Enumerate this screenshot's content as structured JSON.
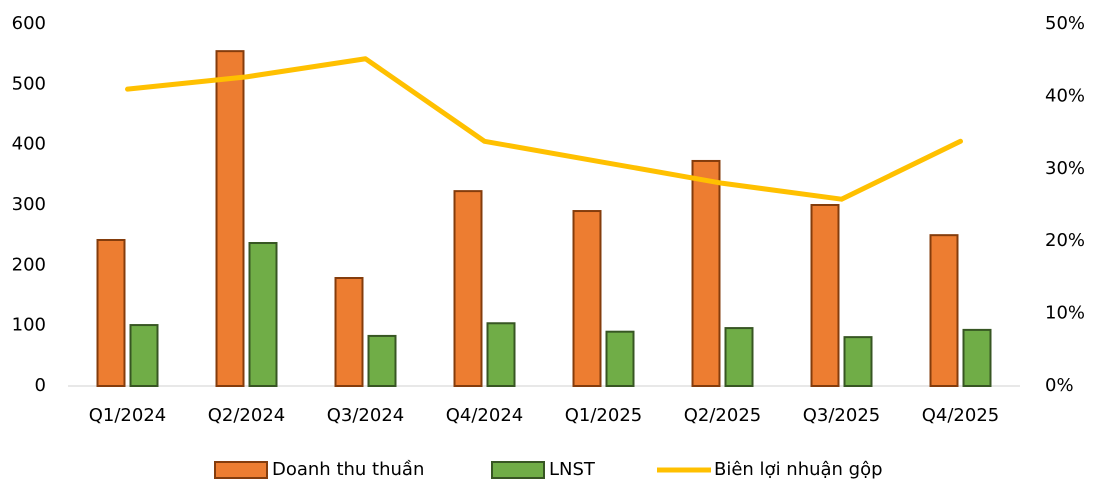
{
  "chart_data": {
    "type": "combo",
    "categories": [
      "Q1/2024",
      "Q2/2024",
      "Q3/2024",
      "Q4/2024",
      "Q1/2025",
      "Q2/2025",
      "Q3/2025",
      "Q4/2025"
    ],
    "series": [
      {
        "name": "Doanh thu thuần",
        "type": "bar",
        "color": "#ED7D31",
        "border": "#843C0C",
        "values": [
          242,
          555,
          179,
          323,
          290,
          373,
          300,
          250
        ]
      },
      {
        "name": "LNST",
        "type": "bar",
        "color": "#70AD47",
        "border": "#375623",
        "values": [
          101,
          237,
          83,
          104,
          90,
          96,
          81,
          93
        ]
      },
      {
        "name": "Biên lợi nhuận gộp",
        "type": "line",
        "axis": "y2",
        "color": "#FFC000",
        "values": [
          41.0,
          42.7,
          45.2,
          33.8,
          30.9,
          28.0,
          25.8,
          33.8
        ]
      }
    ],
    "ylim": [
      0,
      600
    ],
    "yticks": [
      0,
      100,
      200,
      300,
      400,
      500,
      600
    ],
    "y2lim": [
      0,
      50
    ],
    "y2ticks": [
      {
        "value": 0,
        "label": "0%"
      },
      {
        "value": 10,
        "label": "10%"
      },
      {
        "value": 20,
        "label": "20%"
      },
      {
        "value": 30,
        "label": "30%"
      },
      {
        "value": 40,
        "label": "40%"
      },
      {
        "value": 50,
        "label": "50%"
      }
    ],
    "grid": false,
    "legend": "bottom"
  }
}
